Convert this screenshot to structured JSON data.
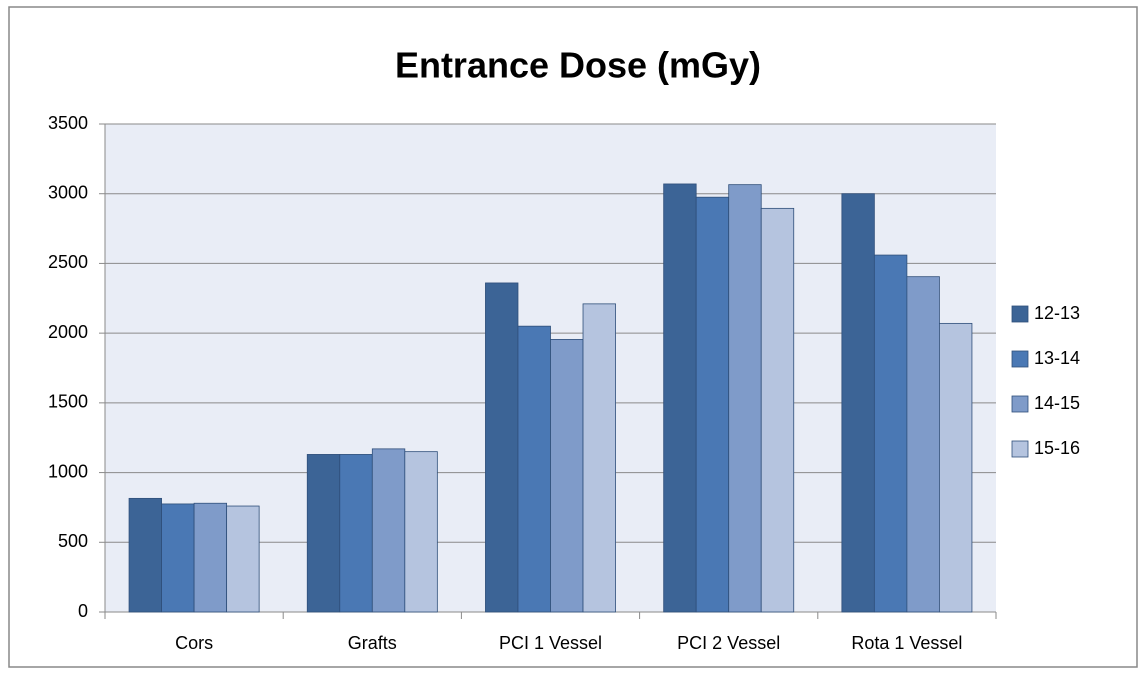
{
  "chart_data": {
    "type": "bar",
    "title": "Entrance Dose (mGy)",
    "categories": [
      "Cors",
      "Grafts",
      "PCI 1 Vessel",
      "PCI 2 Vessel",
      "Rota 1 Vessel"
    ],
    "series": [
      {
        "name": "12-13",
        "color": "#3c6496",
        "values": [
          815,
          1130,
          2360,
          3070,
          3000
        ]
      },
      {
        "name": "13-14",
        "color": "#4a78b4",
        "values": [
          775,
          1130,
          2050,
          2975,
          2560
        ]
      },
      {
        "name": "14-15",
        "color": "#7f9bc9",
        "values": [
          780,
          1170,
          1955,
          3065,
          2405
        ]
      },
      {
        "name": "15-16",
        "color": "#b5c4df",
        "values": [
          760,
          1150,
          2210,
          2895,
          2070
        ]
      }
    ],
    "ylim": [
      0,
      3500
    ],
    "yticks": [
      0,
      500,
      1000,
      1500,
      2000,
      2500,
      3000,
      3500
    ],
    "grid": true,
    "legend": "right"
  }
}
